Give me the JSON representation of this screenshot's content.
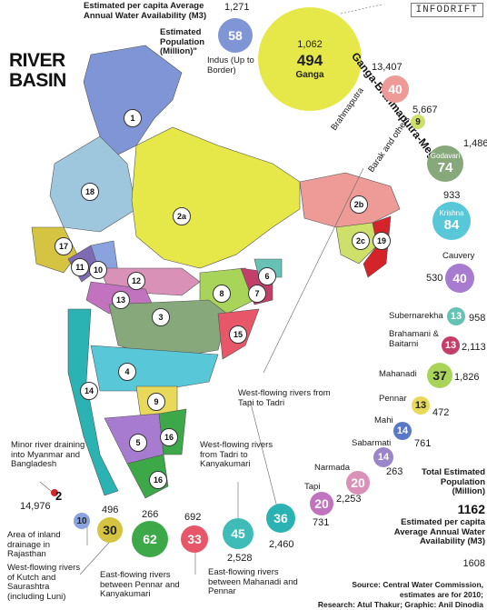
{
  "brand": "INFODRIFT",
  "title_line1": "RIVER",
  "title_line2": "BASIN",
  "legend": {
    "per_capita_label": "Estimated per capita Average Annual Water Availability (M3)",
    "population_label": "Estimated Population (Million)\"",
    "total_label": "Total Estimated Population (Million)",
    "total_population": "1162",
    "total_percap_label": "Estimated per capita Average Annual Water Availability (M3)",
    "total_percap": "1608"
  },
  "map_labels": [
    "1",
    "18",
    "2a",
    "2b",
    "17",
    "11",
    "10",
    "12",
    "13",
    "3",
    "8",
    "7",
    "6",
    "15",
    "4",
    "14",
    "9",
    "5",
    "16",
    "2c",
    "19",
    "16"
  ],
  "basins": [
    {
      "name": "Indus (Up to Border)",
      "pop": "58",
      "percap": "1,271",
      "color": "#7f95d6"
    },
    {
      "name": "Ganga",
      "pop": "494",
      "percap": "1,062",
      "color": "#e6e84a"
    },
    {
      "name": "Brahmaputra",
      "pop": "40",
      "percap": "13,407",
      "color": "#ee9a96"
    },
    {
      "name": "Barak and others",
      "pop": "9",
      "percap": "5,667",
      "color": "#cfe06a"
    },
    {
      "name": "Godavari",
      "pop": "74",
      "percap": "1,486",
      "color": "#86a87a"
    },
    {
      "name": "Krishna",
      "pop": "84",
      "percap": "933",
      "color": "#58c7d7"
    },
    {
      "name": "Cauvery",
      "pop": "40",
      "percap": "530",
      "color": "#a77cd0"
    },
    {
      "name": "Subernarekha",
      "pop": "13",
      "percap": "958",
      "color": "#66c2b4"
    },
    {
      "name": "Brahamani & Baitarni",
      "pop": "13",
      "percap": "2,113",
      "color": "#c43e6a"
    },
    {
      "name": "Mahanadi",
      "pop": "37",
      "percap": "1,826",
      "color": "#a8d45a"
    },
    {
      "name": "Pennar",
      "pop": "13",
      "percap": "472",
      "color": "#e8d95a"
    },
    {
      "name": "Mahi",
      "pop": "14",
      "percap": "761",
      "color": "#5a78c8"
    },
    {
      "name": "Sabarmati",
      "pop": "14",
      "percap": "263",
      "color": "#9a86c9"
    },
    {
      "name": "Narmada",
      "pop": "20",
      "percap": "2,253",
      "color": "#d991b8"
    },
    {
      "name": "Tapi",
      "pop": "20",
      "percap": "731",
      "color": "#c273c0"
    },
    {
      "name": "West-flowing rivers from Tapi to Tadri",
      "pop": "36",
      "percap": "2,460",
      "color": "#2bb3b3"
    },
    {
      "name": "West-flowing rivers from Tadri to Kanyakumari",
      "pop": "45",
      "percap": "2,528",
      "color": "#3fbcb8"
    },
    {
      "name": "East-flowing rivers between Mahanadi and Pennar",
      "pop": "33",
      "percap": "692",
      "color": "#e8566a"
    },
    {
      "name": "East-flowing rivers between Pennar and Kanyakumari",
      "pop": "62",
      "percap": "266",
      "color": "#3da848"
    },
    {
      "name": "West-flowing rivers of Kutch and Saurashtra (including Luni)",
      "pop": "30",
      "percap": "496",
      "color": "#d4c441"
    },
    {
      "name": "Area of inland drainage in Rajasthan",
      "pop": "10",
      "percap": "",
      "color": "#8aa3df"
    },
    {
      "name": "Minor river draining into Myanmar and Bangladesh",
      "pop": "2",
      "percap": "14,976",
      "color": "#d4242a"
    }
  ],
  "ganga_brahmaputra_label": "Ganga-Brahmaputra-Meghna",
  "source": "Source: Central Water Commission, estimates are for 2010;",
  "credits": "Research: Atul Thakur; Graphic: Anil Dinodia"
}
